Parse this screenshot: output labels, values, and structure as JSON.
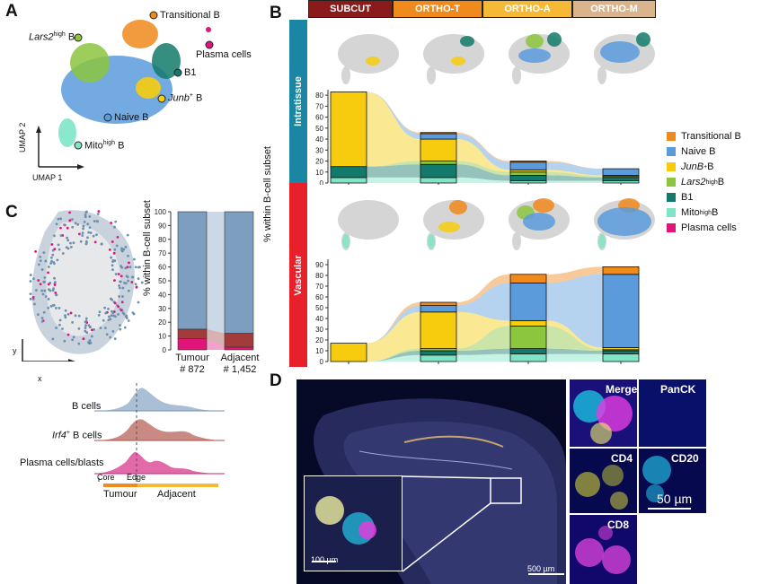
{
  "panels": {
    "a": "A",
    "b": "B",
    "c": "C",
    "d": "D"
  },
  "panel_a": {
    "clusters": {
      "transitional": "Transitional B",
      "lars2_prefix": "Lars2",
      "lars2_sup": "high",
      "lars2_suffix": " B",
      "plasma": "Plasma cells",
      "b1": "B1",
      "junb_prefix": "Junb",
      "junb_sup": "+",
      "junb_suffix": " B",
      "naive": "Naive B",
      "mito_prefix": "Mito",
      "mito_sup": "high",
      "mito_suffix": " B"
    },
    "umap1": "UMAP 1",
    "umap2": "UMAP 2"
  },
  "panel_b": {
    "headers": [
      "SUBCUT",
      "ORTHO-T",
      "ORTHO-A",
      "ORTHO-M"
    ],
    "header_colors": [
      "#8b1a1a",
      "#f08a1c",
      "#f5b935",
      "#d9b48c"
    ],
    "row_intratissue": "Intratissue",
    "row_vascular": "Vascular",
    "row_colors": {
      "intratissue": "#1a86a3",
      "vascular": "#e8202a"
    },
    "ylabel": "% within B-cell subset",
    "legend": [
      {
        "label": "Transitional B",
        "color": "#f08a1c"
      },
      {
        "label": "Naive B",
        "color": "#5b9bdc"
      },
      {
        "label": "JunB+ B",
        "color": "#f7cc0e"
      },
      {
        "label": "Lars2high B",
        "color": "#8cc63f"
      },
      {
        "label": "B1",
        "color": "#137a6b"
      },
      {
        "label": "Mitohigh B",
        "color": "#7fe5c6"
      },
      {
        "label": "Plasma cells",
        "color": "#e0157a"
      }
    ],
    "legend_parts": {
      "junb_prefix": "JunB",
      "junb_sup": "+",
      "junb_suffix": " B",
      "lars2_prefix": "Lars2",
      "lars2_sup": "high",
      "lars2_suffix": " B",
      "mito_prefix": "Mito",
      "mito_sup": "high",
      "mito_suffix": " B"
    }
  },
  "panel_c": {
    "ylabel": "% within B-cell subset",
    "x_axis": "x",
    "y_axis": "y",
    "bars": [
      {
        "label": "Tumour",
        "sub": "# 872"
      },
      {
        "label": "Adjacent",
        "sub": "# 1,452"
      }
    ],
    "density_rows": {
      "bcells": "B cells",
      "irf4_prefix": "Irf4",
      "irf4_sup": "+",
      "irf4_suffix": " B cells",
      "plasma": "Plasma cells/blasts"
    },
    "core": "Core",
    "edge": "Edge",
    "tumour": "Tumour",
    "adjacent": "Adjacent"
  },
  "panel_d": {
    "labels": [
      "Merge",
      "PanCK",
      "CD4",
      "CD20",
      "CD8"
    ],
    "scale_main": "500 µm",
    "scale_inset": "100 µm",
    "scale_small": "50 µm"
  },
  "chart_data": [
    {
      "type": "bar",
      "title": "Intratissue",
      "categories": [
        "SUBCUT",
        "ORTHO-T",
        "ORTHO-A",
        "ORTHO-M"
      ],
      "ylabel": "% within B-cell subset",
      "ylim": [
        0,
        85
      ],
      "yticks": [
        0,
        10,
        20,
        30,
        40,
        50,
        60,
        70,
        80
      ],
      "series": [
        {
          "name": "Mitohigh B",
          "values": [
            5,
            5,
            2,
            2
          ]
        },
        {
          "name": "B1",
          "values": [
            10,
            12,
            5,
            3
          ]
        },
        {
          "name": "Lars2high B",
          "values": [
            0,
            3,
            3,
            1
          ]
        },
        {
          "name": "JunB+ B",
          "values": [
            68,
            20,
            2,
            1
          ]
        },
        {
          "name": "Naive B",
          "values": [
            0,
            5,
            7,
            6
          ]
        },
        {
          "name": "Transitional B",
          "values": [
            0,
            1,
            1,
            0
          ]
        },
        {
          "name": "Plasma cells",
          "values": [
            0,
            0,
            0,
            0
          ]
        }
      ]
    },
    {
      "type": "bar",
      "title": "Vascular",
      "categories": [
        "SUBCUT",
        "ORTHO-T",
        "ORTHO-A",
        "ORTHO-M"
      ],
      "ylabel": "% within B-cell subset",
      "ylim": [
        0,
        95
      ],
      "yticks": [
        0,
        10,
        20,
        30,
        40,
        50,
        60,
        70,
        80,
        90
      ],
      "series": [
        {
          "name": "Mitohigh B",
          "values": [
            0,
            6,
            7,
            7
          ]
        },
        {
          "name": "B1",
          "values": [
            0,
            4,
            5,
            3
          ]
        },
        {
          "name": "Lars2high B",
          "values": [
            0,
            2,
            21,
            1
          ]
        },
        {
          "name": "JunB+ B",
          "values": [
            17,
            34,
            5,
            2
          ]
        },
        {
          "name": "Naive B",
          "values": [
            0,
            6,
            35,
            68
          ]
        },
        {
          "name": "Transitional B",
          "values": [
            0,
            3,
            8,
            7
          ]
        },
        {
          "name": "Plasma cells",
          "values": [
            0,
            0,
            0,
            0
          ]
        }
      ]
    },
    {
      "type": "bar",
      "title": "",
      "categories": [
        "Tumour",
        "Adjacent"
      ],
      "ylabel": "% within B-cell subset",
      "ylim": [
        0,
        100
      ],
      "yticks": [
        0,
        10,
        20,
        30,
        40,
        50,
        60,
        70,
        80,
        90,
        100
      ],
      "series": [
        {
          "name": "Plasma cells",
          "values": [
            8,
            2
          ]
        },
        {
          "name": "Lars2high B",
          "values": [
            7,
            10
          ]
        },
        {
          "name": "Naive B",
          "values": [
            85,
            88
          ]
        }
      ]
    }
  ]
}
